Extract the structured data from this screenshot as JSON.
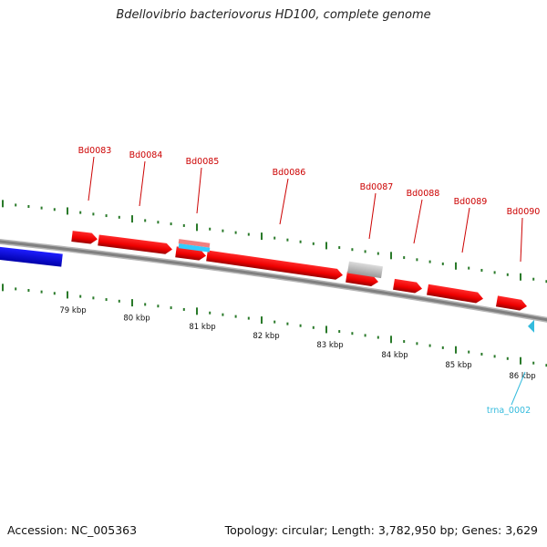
{
  "title": "Bdellovibrio bacteriovorus HD100, complete genome",
  "footer": {
    "accession": "Accession: NC_005363",
    "stats": "Topology: circular; Length: 3,782,950 bp; Genes: 3,629"
  },
  "colors": {
    "gene": "#ff0000",
    "gene_dark": "#a80000",
    "blue_feature": "#0000ee",
    "pseudo_gray": "#c8c8c8",
    "rrna_pink": "#f08080",
    "rrna_cyan": "#33ccff",
    "trna": "#33bbdd",
    "tick": "#2a7a2a",
    "backbone": "#808080",
    "gene_label": "#cc0000",
    "trna_label": "#33bbdd"
  },
  "genes": [
    {
      "label": "Bd0083"
    },
    {
      "label": "Bd0084"
    },
    {
      "label": "Bd0085"
    },
    {
      "label": "Bd0086"
    },
    {
      "label": "Bd0087"
    },
    {
      "label": "Bd0088"
    },
    {
      "label": "Bd0089"
    },
    {
      "label": "Bd0090"
    }
  ],
  "trna": {
    "label": "trna_0002"
  },
  "scale_labels": [
    "79 kbp",
    "80 kbp",
    "81 kbp",
    "82 kbp",
    "83 kbp",
    "84 kbp",
    "85 kbp",
    "86 kbp"
  ]
}
